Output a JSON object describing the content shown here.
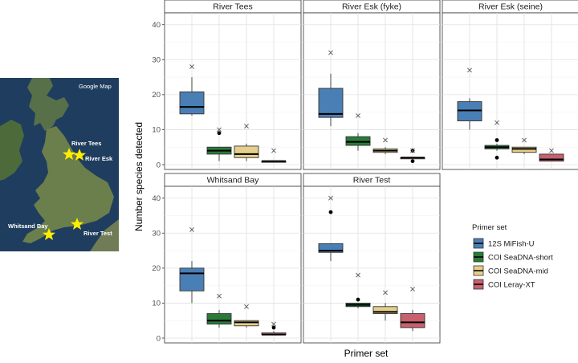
{
  "map": {
    "brand": "Google Map",
    "sites": [
      {
        "name": "River Tees",
        "label": "River Tees"
      },
      {
        "name": "River Esk",
        "label": "River Esk"
      },
      {
        "name": "Whitsand Bay",
        "label": "Whitsand Bay"
      },
      {
        "name": "River Test",
        "label": "River Test"
      }
    ],
    "star_color": "#ffee00"
  },
  "chart_data": {
    "type": "box",
    "xlabel": "Primer set",
    "ylabel": "Number species detected",
    "ylim": [
      0,
      42
    ],
    "yticks": [
      0,
      10,
      20,
      30,
      40
    ],
    "grid": true,
    "legend": {
      "title": "Primer set",
      "placement": "right",
      "entries": [
        {
          "label": "12S MiFish-U",
          "color": "#4a7fb5"
        },
        {
          "label": "COI SeaDNA-short",
          "color": "#2a7a3a"
        },
        {
          "label": "COI SeaDNA-mid",
          "color": "#e6cf8a"
        },
        {
          "label": "COI Leray-XT",
          "color": "#c8606e"
        }
      ]
    },
    "panels": [
      {
        "title": "River Tees",
        "boxes": [
          {
            "q1": 14.5,
            "median": 16.5,
            "q3": 20.8,
            "whisker_low": 14,
            "whisker_high": 25,
            "outliers": [],
            "total": 28
          },
          {
            "q1": 3,
            "median": 4,
            "q3": 5,
            "whisker_low": 1,
            "whisker_high": 5,
            "outliers": [
              9
            ],
            "total": 10
          },
          {
            "q1": 2,
            "median": 3,
            "q3": 5.3,
            "whisker_low": 1,
            "whisker_high": 6,
            "outliers": [],
            "total": 11
          },
          {
            "q1": 1,
            "median": 1,
            "q3": 1,
            "whisker_low": 1,
            "whisker_high": 1,
            "outliers": [],
            "total": 4
          }
        ]
      },
      {
        "title": "River Esk (fyke)",
        "boxes": [
          {
            "q1": 13.5,
            "median": 14.5,
            "q3": 21.8,
            "whisker_low": 11,
            "whisker_high": 26,
            "outliers": [],
            "total": 32
          },
          {
            "q1": 5.5,
            "median": 6.5,
            "q3": 8,
            "whisker_low": 4,
            "whisker_high": 9,
            "outliers": [],
            "total": 14
          },
          {
            "q1": 3.5,
            "median": 4,
            "q3": 4.5,
            "whisker_low": 3,
            "whisker_high": 5,
            "outliers": [],
            "total": 7
          },
          {
            "q1": 2,
            "median": 2,
            "q3": 2,
            "whisker_low": 2,
            "whisker_high": 2,
            "outliers": [
              1,
              4
            ],
            "total": 4
          }
        ]
      },
      {
        "title": "River Esk (seine)",
        "boxes": [
          {
            "q1": 12.5,
            "median": 15.5,
            "q3": 18,
            "whisker_low": 10,
            "whisker_high": 19,
            "outliers": [],
            "total": 27
          },
          {
            "q1": 4.5,
            "median": 5,
            "q3": 5.5,
            "whisker_low": 4,
            "whisker_high": 6,
            "outliers": [
              2,
              7
            ],
            "total": 12
          },
          {
            "q1": 3.5,
            "median": 4.5,
            "q3": 5,
            "whisker_low": 3,
            "whisker_high": 5,
            "outliers": [],
            "total": 7
          },
          {
            "q1": 1,
            "median": 1.5,
            "q3": 3,
            "whisker_low": 1,
            "whisker_high": 3,
            "outliers": [],
            "total": 4
          }
        ]
      },
      {
        "title": "Whitsand Bay",
        "boxes": [
          {
            "q1": 13.5,
            "median": 18.5,
            "q3": 20,
            "whisker_low": 10,
            "whisker_high": 22,
            "outliers": [],
            "total": 31
          },
          {
            "q1": 4,
            "median": 5,
            "q3": 7,
            "whisker_low": 3,
            "whisker_high": 8,
            "outliers": [],
            "total": 12
          },
          {
            "q1": 3.5,
            "median": 4.5,
            "q3": 5,
            "whisker_low": 3,
            "whisker_high": 5,
            "outliers": [],
            "total": 9
          },
          {
            "q1": 1,
            "median": 1,
            "q3": 1.5,
            "whisker_low": 1,
            "whisker_high": 2,
            "outliers": [
              3
            ],
            "total": 4
          }
        ]
      },
      {
        "title": "River Test",
        "boxes": [
          {
            "q1": 24.5,
            "median": 25,
            "q3": 27,
            "whisker_low": 22,
            "whisker_high": 27,
            "outliers": [
              36
            ],
            "total": 40
          },
          {
            "q1": 9,
            "median": 9.5,
            "q3": 10,
            "whisker_low": 8.5,
            "whisker_high": 10,
            "outliers": [
              11
            ],
            "total": 18
          },
          {
            "q1": 7,
            "median": 7.5,
            "q3": 9,
            "whisker_low": 5,
            "whisker_high": 10,
            "outliers": [],
            "total": 13
          },
          {
            "q1": 3,
            "median": 4.5,
            "q3": 7,
            "whisker_low": 2,
            "whisker_high": 8,
            "outliers": [],
            "total": 14
          }
        ]
      }
    ]
  }
}
